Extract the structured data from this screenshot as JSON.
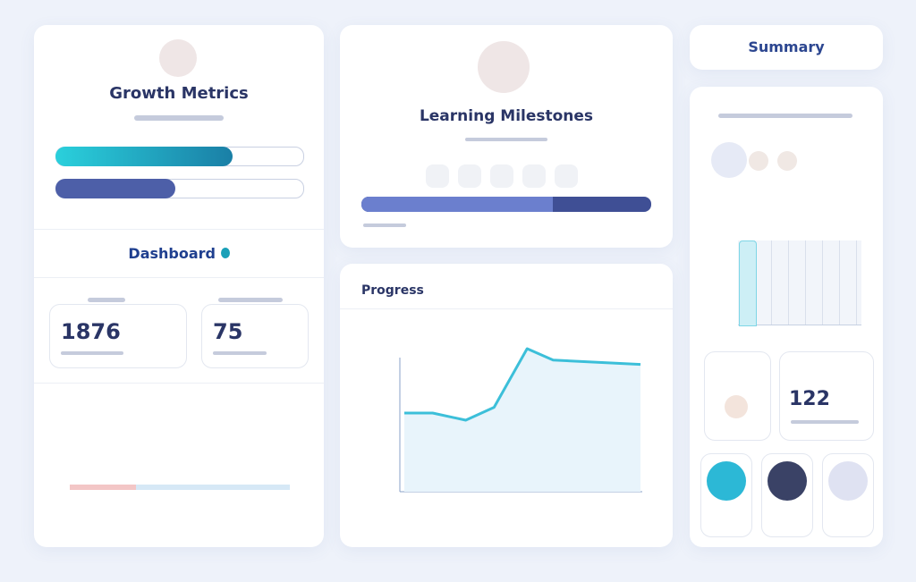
{
  "left_card": {
    "title": "Growth Metrics",
    "section_title": "Dashboard",
    "stats": [
      {
        "value": "1876"
      },
      {
        "value": "75"
      }
    ]
  },
  "milestones_card": {
    "title": "Learning Milestones"
  },
  "progress_card": {
    "title": "Progress",
    "chart": {
      "type": "line",
      "x": [
        0,
        12,
        26,
        38,
        52,
        63,
        100
      ],
      "values": [
        55,
        55,
        50,
        59,
        100,
        92,
        89
      ],
      "xlim": [
        0,
        100
      ],
      "ylim": [
        0,
        100
      ],
      "color": "#3cbfd9"
    }
  },
  "summary_card": {
    "title": "Summary",
    "stat": {
      "value": "122"
    }
  }
}
